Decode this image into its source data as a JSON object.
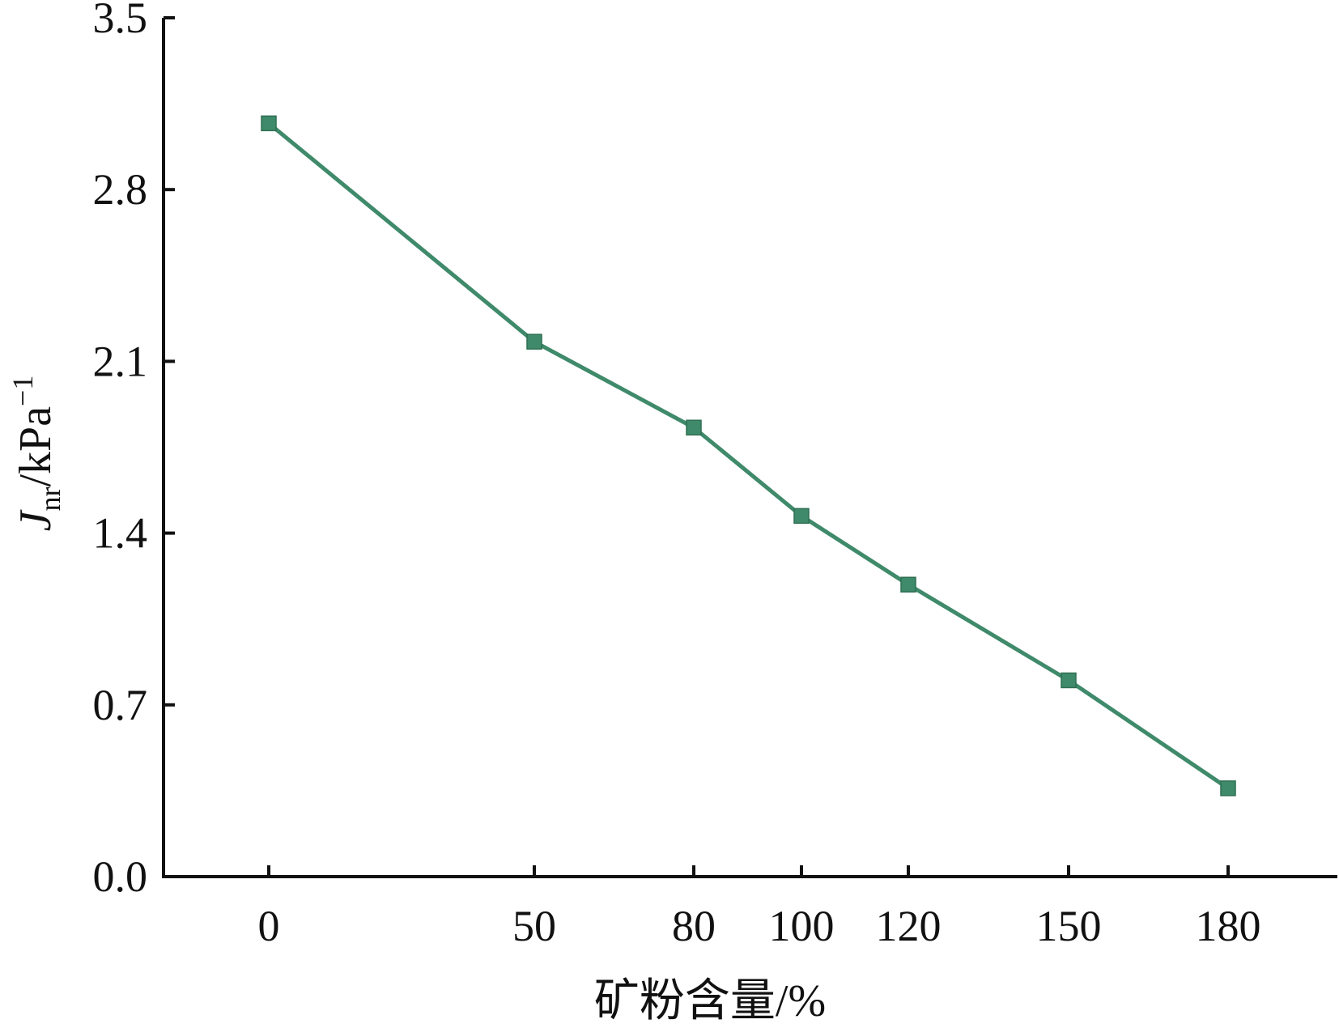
{
  "chart_data": {
    "type": "line",
    "title": "",
    "xlabel": "矿粉含量/%",
    "ylabel": {
      "main": "J",
      "sub": "nr",
      "unit": "/kPa",
      "sup": "−1"
    },
    "categories": [
      "0",
      "50",
      "80",
      "100",
      "120",
      "150",
      "180"
    ],
    "x": [
      0,
      50,
      80,
      100,
      120,
      150,
      180
    ],
    "ylim": [
      0.0,
      3.5
    ],
    "yticks": [
      "0.0",
      "0.7",
      "1.4",
      "2.1",
      "2.8",
      "3.5"
    ],
    "grid": false,
    "legend": "none",
    "series": [
      {
        "values": [
          3.07,
          2.18,
          1.83,
          1.47,
          1.19,
          0.8,
          0.36
        ],
        "color": "#3f8a6a",
        "marker": "square"
      }
    ]
  }
}
